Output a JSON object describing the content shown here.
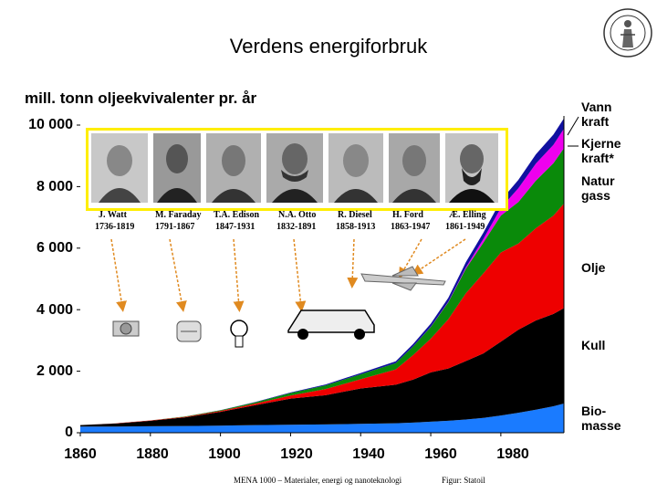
{
  "page": {
    "title": "Verdens energiforbruk",
    "footer_course": "MENA 1000 – Materialer, energi og nanoteknologi",
    "footer_source": "Figur: Statoil"
  },
  "inventors": [
    {
      "name": "J. Watt",
      "years": "1736-1819"
    },
    {
      "name": "M. Faraday",
      "years": "1791-1867"
    },
    {
      "name": "T.A. Edison",
      "years": "1847-1931"
    },
    {
      "name": "N.A. Otto",
      "years": "1832-1891"
    },
    {
      "name": "R. Diesel",
      "years": "1858-1913"
    },
    {
      "name": "H. Ford",
      "years": "1863-1947"
    },
    {
      "name": "Æ. Elling",
      "years": "1861-1949"
    }
  ],
  "icons": [
    "steam-engine-icon",
    "generator-icon",
    "light-bulb-icon",
    "car-icon",
    "airplane-icon"
  ],
  "chart_data": {
    "type": "area",
    "title": "",
    "ylabel": "mill. tonn oljeekvivalenter pr. år",
    "xlabel": "",
    "ylim": [
      0,
      10000
    ],
    "xlim": [
      1860,
      1998
    ],
    "y_ticks": [
      "0",
      "2 000",
      "4 000",
      "6 000",
      "8 000",
      "10 000"
    ],
    "x_ticks": [
      "1860",
      "1880",
      "1900",
      "1920",
      "1940",
      "1960",
      "1980"
    ],
    "stacked": true,
    "x": [
      1860,
      1870,
      1880,
      1890,
      1900,
      1910,
      1920,
      1930,
      1940,
      1950,
      1955,
      1960,
      1965,
      1970,
      1975,
      1980,
      1985,
      1990,
      1995,
      1998
    ],
    "series": [
      {
        "name": "Bio-\nmasse",
        "color": "#1a7bff",
        "values": [
          200,
          200,
          210,
          220,
          230,
          250,
          260,
          270,
          290,
          310,
          330,
          360,
          390,
          430,
          480,
          560,
          650,
          750,
          860,
          950
        ]
      },
      {
        "name": "Kull",
        "color": "#000000",
        "values": [
          50,
          100,
          180,
          280,
          450,
          650,
          850,
          950,
          1150,
          1250,
          1400,
          1600,
          1700,
          1900,
          2100,
          2400,
          2700,
          2900,
          3000,
          3100
        ]
      },
      {
        "name": "Olje",
        "color": "#ee0000",
        "values": [
          0,
          5,
          10,
          20,
          30,
          50,
          100,
          200,
          300,
          500,
          800,
          1100,
          1600,
          2200,
          2600,
          2900,
          2800,
          3000,
          3200,
          3400
        ]
      },
      {
        "name": "Natur\ngass",
        "color": "#0a8a0a",
        "values": [
          0,
          0,
          0,
          10,
          20,
          40,
          80,
          120,
          160,
          200,
          280,
          380,
          550,
          800,
          1000,
          1200,
          1350,
          1550,
          1700,
          1800
        ]
      },
      {
        "name": "Kjerne\nkraft*",
        "color": "#ee00ee",
        "values": [
          0,
          0,
          0,
          0,
          0,
          0,
          0,
          0,
          0,
          0,
          0,
          5,
          15,
          40,
          120,
          250,
          450,
          550,
          600,
          630
        ]
      },
      {
        "name": "Vann\nkraft",
        "color": "#1010a0",
        "values": [
          0,
          0,
          0,
          0,
          5,
          10,
          20,
          30,
          40,
          60,
          80,
          100,
          130,
          170,
          200,
          240,
          270,
          300,
          330,
          340
        ]
      }
    ]
  }
}
